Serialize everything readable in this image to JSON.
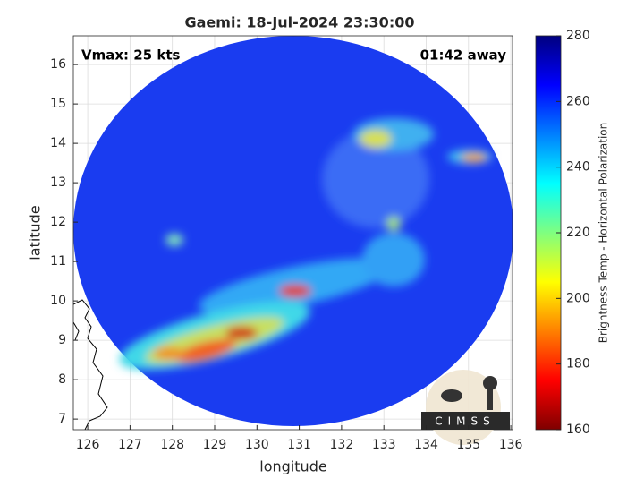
{
  "map": {
    "title": "Gaemi: 18-Jul-2024 23:30:00",
    "annotations": {
      "left": "Vmax: 25 kts",
      "right": "01:42 away"
    },
    "xlabel": "longitude",
    "ylabel": "latitude",
    "xlim": [
      125.66,
      136.04
    ],
    "ylim": [
      6.73,
      16.73
    ],
    "xticks": [
      126,
      127,
      128,
      129,
      130,
      131,
      132,
      133,
      134,
      135,
      136
    ],
    "yticks": [
      7,
      8,
      9,
      10,
      11,
      12,
      13,
      14,
      15,
      16
    ],
    "grid": true,
    "colorbar": {
      "label": "Brightness Temp - Horizontal Polarization",
      "lim": [
        160,
        280
      ],
      "ticks": [
        160,
        180,
        200,
        220,
        240,
        260,
        280
      ]
    },
    "logo": "CIMSS"
  }
}
